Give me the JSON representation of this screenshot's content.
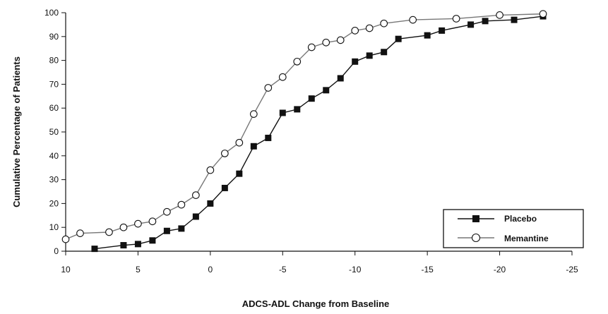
{
  "chart_data": {
    "type": "line",
    "title": "",
    "xlabel": "ADCS-ADL Change from Baseline",
    "ylabel": "Cumulative Percentage of Patients",
    "xlim": [
      10,
      -25
    ],
    "ylim": [
      0,
      100
    ],
    "x_reversed": true,
    "x_ticks": [
      10,
      5,
      0,
      -5,
      -10,
      -15,
      -20,
      -25
    ],
    "x_tick_labels": [
      "10",
      "5",
      "0",
      "-5",
      "-10",
      "-15",
      "-20",
      "-25"
    ],
    "y_ticks": [
      0,
      10,
      20,
      30,
      40,
      50,
      60,
      70,
      80,
      90,
      100
    ],
    "y_tick_labels": [
      "0",
      "10",
      "20",
      "30",
      "40",
      "50",
      "60",
      "70",
      "80",
      "90",
      "100"
    ],
    "grid": false,
    "legend": "bottom-right",
    "series": [
      {
        "name": "Placebo",
        "marker": "filled-square",
        "color": "#111111",
        "x": [
          8,
          6,
          5,
          4,
          3,
          2,
          1,
          0,
          -1,
          -2,
          -3,
          -4,
          -5,
          -6,
          -7,
          -8,
          -9,
          -10,
          -11,
          -12,
          -13,
          -15,
          -16,
          -18,
          -19,
          -21,
          -23
        ],
        "y": [
          1,
          2.5,
          3,
          4.5,
          8.5,
          9.5,
          14.5,
          20,
          26.5,
          32.5,
          44,
          47.5,
          58,
          59.5,
          64,
          67.5,
          72.5,
          79.5,
          82,
          83.5,
          89,
          90.5,
          92.5,
          95,
          96.5,
          97,
          98.5
        ]
      },
      {
        "name": "Memantine",
        "marker": "open-circle",
        "color": "#777777",
        "x": [
          10,
          9,
          7,
          6,
          5,
          4,
          3,
          2,
          1,
          0,
          -1,
          -2,
          -3,
          -4,
          -5,
          -6,
          -7,
          -8,
          -9,
          -10,
          -11,
          -12,
          -14,
          -17,
          -20,
          -23
        ],
        "y": [
          5,
          7.5,
          8,
          10,
          11.5,
          12.5,
          16.5,
          19.5,
          23.5,
          34,
          41,
          45.5,
          57.5,
          68.5,
          73,
          79.5,
          85.5,
          87.5,
          88.5,
          92.5,
          93.5,
          95.5,
          97,
          97.5,
          99,
          99.5
        ]
      }
    ]
  }
}
